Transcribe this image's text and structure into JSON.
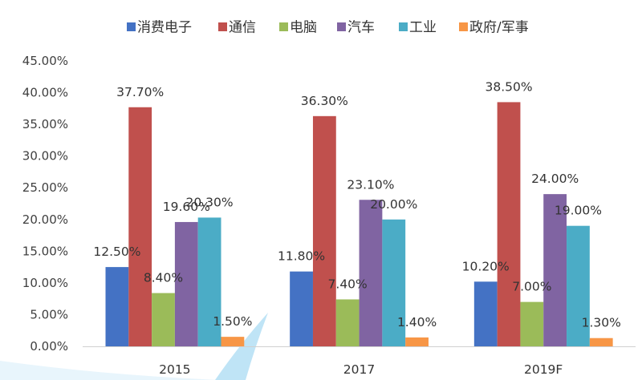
{
  "chart_data": {
    "type": "bar",
    "categories": [
      "2015",
      "2017",
      "2019F"
    ],
    "series": [
      {
        "name": "消费电子",
        "color": "#4472C4",
        "values": [
          12.5,
          11.8,
          10.2
        ],
        "data_labels": [
          "12.50%",
          "11.80%",
          "10.20%"
        ]
      },
      {
        "name": "通信",
        "color": "#C0504D",
        "values": [
          37.7,
          36.3,
          38.5
        ],
        "data_labels": [
          "37.70%",
          "36.30%",
          "38.50%"
        ]
      },
      {
        "name": "电脑",
        "color": "#9BBB59",
        "values": [
          8.4,
          7.4,
          7.0
        ],
        "data_labels": [
          "8.40%",
          "7.40%",
          "7.00%"
        ]
      },
      {
        "name": "汽车",
        "color": "#8064A2",
        "values": [
          19.6,
          23.1,
          24.0
        ],
        "data_labels": [
          "19.60%",
          "23.10%",
          "24.00%"
        ]
      },
      {
        "name": "工业",
        "color": "#4BACC6",
        "values": [
          20.3,
          20.0,
          19.0
        ],
        "data_labels": [
          "20.30%",
          "20.00%",
          "19.00%"
        ]
      },
      {
        "name": "政府/军事",
        "color": "#F79646",
        "values": [
          1.5,
          1.4,
          1.3
        ],
        "data_labels": [
          "1.50%",
          "1.40%",
          "1.30%"
        ]
      }
    ],
    "ylim": [
      0,
      45
    ],
    "yticks": [
      0,
      5,
      10,
      15,
      20,
      25,
      30,
      35,
      40,
      45
    ],
    "ytick_labels": [
      "0.00%",
      "5.00%",
      "10.00%",
      "15.00%",
      "20.00%",
      "25.00%",
      "30.00%",
      "35.00%",
      "40.00%",
      "45.00%"
    ],
    "grid": false,
    "legend_position": "top"
  }
}
